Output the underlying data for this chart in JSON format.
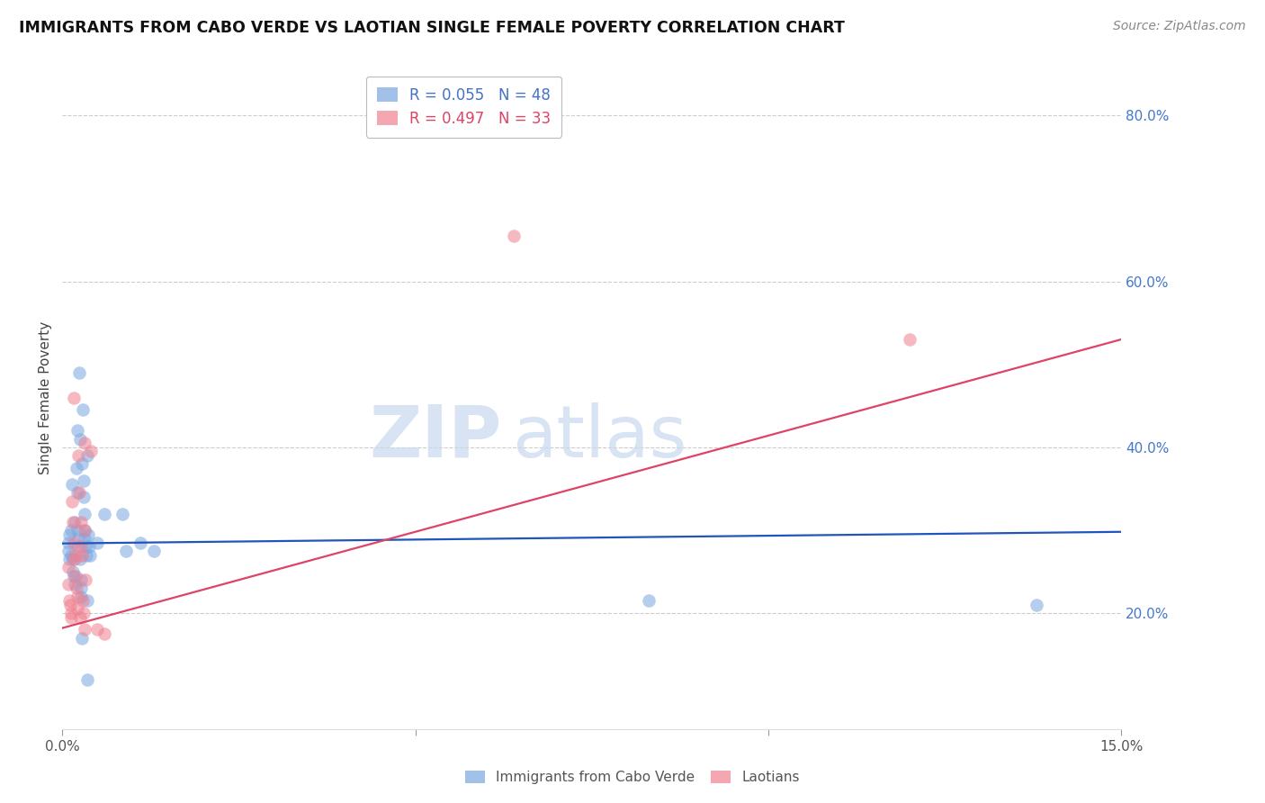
{
  "title": "IMMIGRANTS FROM CABO VERDE VS LAOTIAN SINGLE FEMALE POVERTY CORRELATION CHART",
  "source": "Source: ZipAtlas.com",
  "ylabel": "Single Female Poverty",
  "right_yticks": [
    "80.0%",
    "60.0%",
    "40.0%",
    "20.0%"
  ],
  "right_ytick_vals": [
    0.8,
    0.6,
    0.4,
    0.2
  ],
  "legend_blue_R": "R = 0.055",
  "legend_blue_N": "N = 48",
  "legend_pink_R": "R = 0.497",
  "legend_pink_N": "N = 33",
  "blue_color": "#7ba7e0",
  "pink_color": "#f08090",
  "trendline_blue": "#2255bb",
  "trendline_pink": "#dd4466",
  "watermark1": "ZIP",
  "watermark2": "atlas",
  "blue_scatter": [
    [
      0.0008,
      0.275
    ],
    [
      0.0009,
      0.285
    ],
    [
      0.001,
      0.265
    ],
    [
      0.001,
      0.295
    ],
    [
      0.0012,
      0.3
    ],
    [
      0.0013,
      0.27
    ],
    [
      0.0014,
      0.355
    ],
    [
      0.0015,
      0.265
    ],
    [
      0.0015,
      0.25
    ],
    [
      0.0016,
      0.245
    ],
    [
      0.0017,
      0.235
    ],
    [
      0.0018,
      0.31
    ],
    [
      0.002,
      0.375
    ],
    [
      0.0021,
      0.345
    ],
    [
      0.0022,
      0.42
    ],
    [
      0.0022,
      0.3
    ],
    [
      0.0023,
      0.29
    ],
    [
      0.0023,
      0.28
    ],
    [
      0.0024,
      0.49
    ],
    [
      0.0025,
      0.265
    ],
    [
      0.0025,
      0.41
    ],
    [
      0.0026,
      0.24
    ],
    [
      0.0026,
      0.23
    ],
    [
      0.0027,
      0.22
    ],
    [
      0.0028,
      0.17
    ],
    [
      0.0028,
      0.38
    ],
    [
      0.0029,
      0.445
    ],
    [
      0.003,
      0.36
    ],
    [
      0.003,
      0.34
    ],
    [
      0.0031,
      0.32
    ],
    [
      0.0031,
      0.3
    ],
    [
      0.0032,
      0.29
    ],
    [
      0.0033,
      0.28
    ],
    [
      0.0034,
      0.27
    ],
    [
      0.0035,
      0.215
    ],
    [
      0.0036,
      0.12
    ],
    [
      0.0036,
      0.39
    ],
    [
      0.0037,
      0.295
    ],
    [
      0.0038,
      0.28
    ],
    [
      0.0039,
      0.27
    ],
    [
      0.005,
      0.285
    ],
    [
      0.006,
      0.32
    ],
    [
      0.0085,
      0.32
    ],
    [
      0.009,
      0.275
    ],
    [
      0.011,
      0.285
    ],
    [
      0.013,
      0.275
    ],
    [
      0.083,
      0.215
    ],
    [
      0.138,
      0.21
    ]
  ],
  "pink_scatter": [
    [
      0.0008,
      0.255
    ],
    [
      0.0009,
      0.235
    ],
    [
      0.001,
      0.215
    ],
    [
      0.0011,
      0.21
    ],
    [
      0.0012,
      0.2
    ],
    [
      0.0013,
      0.195
    ],
    [
      0.0014,
      0.335
    ],
    [
      0.0015,
      0.31
    ],
    [
      0.0016,
      0.46
    ],
    [
      0.0016,
      0.285
    ],
    [
      0.0017,
      0.27
    ],
    [
      0.0018,
      0.265
    ],
    [
      0.0019,
      0.245
    ],
    [
      0.002,
      0.23
    ],
    [
      0.0021,
      0.22
    ],
    [
      0.0022,
      0.205
    ],
    [
      0.0023,
      0.39
    ],
    [
      0.0024,
      0.345
    ],
    [
      0.0025,
      0.195
    ],
    [
      0.0026,
      0.31
    ],
    [
      0.0027,
      0.28
    ],
    [
      0.0028,
      0.27
    ],
    [
      0.0029,
      0.215
    ],
    [
      0.003,
      0.2
    ],
    [
      0.0031,
      0.18
    ],
    [
      0.0031,
      0.405
    ],
    [
      0.0032,
      0.3
    ],
    [
      0.0033,
      0.24
    ],
    [
      0.004,
      0.395
    ],
    [
      0.005,
      0.18
    ],
    [
      0.006,
      0.175
    ],
    [
      0.064,
      0.655
    ],
    [
      0.12,
      0.53
    ]
  ],
  "xlim": [
    0.0,
    0.15
  ],
  "ylim": [
    0.06,
    0.86
  ],
  "blue_trend_x": [
    0.0,
    0.15
  ],
  "blue_trend_y": [
    0.284,
    0.298
  ],
  "pink_trend_x": [
    0.0,
    0.15
  ],
  "pink_trend_y": [
    0.182,
    0.53
  ],
  "xtick_positions": [
    0.0,
    0.05,
    0.1,
    0.15
  ],
  "xtick_labels": [
    "0.0%",
    "",
    "",
    "15.0%"
  ]
}
